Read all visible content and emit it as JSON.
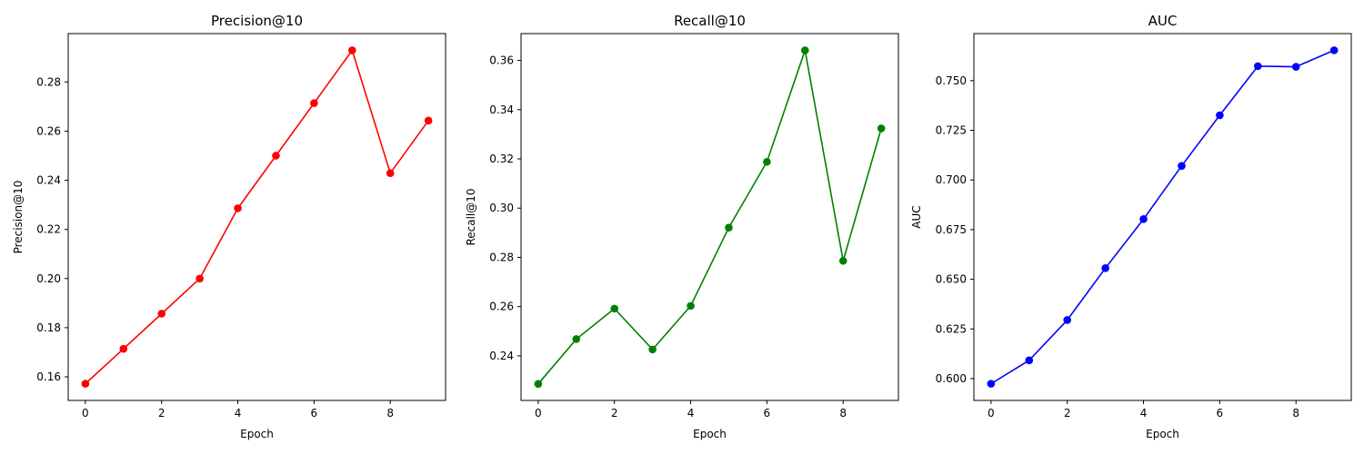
{
  "chart_data": [
    {
      "type": "line",
      "title": "Precision@10",
      "xlabel": "Epoch",
      "ylabel": "Precision@10",
      "color": "#ff0000",
      "x": [
        0,
        1,
        2,
        3,
        4,
        5,
        6,
        7,
        8,
        9
      ],
      "y": [
        0.1572,
        0.1714,
        0.1857,
        0.2,
        0.2286,
        0.25,
        0.2714,
        0.2929,
        0.2429,
        0.2643
      ],
      "xlim": [
        -0.45,
        9.45
      ],
      "ylim": [
        0.1504,
        0.2997
      ],
      "xticks": [
        0,
        2,
        4,
        6,
        8
      ],
      "xtick_labels": [
        "0",
        "2",
        "4",
        "6",
        "8"
      ],
      "yticks": [
        0.16,
        0.18,
        0.2,
        0.22,
        0.24,
        0.26,
        0.28
      ],
      "ytick_labels": [
        "0.16",
        "0.18",
        "0.20",
        "0.22",
        "0.24",
        "0.26",
        "0.28"
      ],
      "grid": false,
      "marker": "circle"
    },
    {
      "type": "line",
      "title": "Recall@10",
      "xlabel": "Epoch",
      "ylabel": "Recall@10",
      "color": "#008000",
      "x": [
        0,
        1,
        2,
        3,
        4,
        5,
        6,
        7,
        8,
        9
      ],
      "y": [
        0.2286,
        0.2468,
        0.2592,
        0.2426,
        0.2603,
        0.2921,
        0.3188,
        0.3641,
        0.2786,
        0.3324
      ],
      "xlim": [
        -0.45,
        9.45
      ],
      "ylim": [
        0.2219,
        0.3709
      ],
      "xticks": [
        0,
        2,
        4,
        6,
        8
      ],
      "xtick_labels": [
        "0",
        "2",
        "4",
        "6",
        "8"
      ],
      "yticks": [
        0.24,
        0.26,
        0.28,
        0.3,
        0.32,
        0.34,
        0.36
      ],
      "ytick_labels": [
        "0.24",
        "0.26",
        "0.28",
        "0.30",
        "0.32",
        "0.34",
        "0.36"
      ],
      "grid": false,
      "marker": "circle"
    },
    {
      "type": "line",
      "title": "AUC",
      "xlabel": "Epoch",
      "ylabel": "AUC",
      "color": "#0000ff",
      "x": [
        0,
        1,
        2,
        3,
        4,
        5,
        6,
        7,
        8,
        9
      ],
      "y": [
        0.5974,
        0.6092,
        0.6295,
        0.6556,
        0.6803,
        0.7071,
        0.7326,
        0.7573,
        0.757,
        0.7653
      ],
      "xlim": [
        -0.45,
        9.45
      ],
      "ylim": [
        0.589,
        0.7737
      ],
      "xticks": [
        0,
        2,
        4,
        6,
        8
      ],
      "xtick_labels": [
        "0",
        "2",
        "4",
        "6",
        "8"
      ],
      "yticks": [
        0.6,
        0.625,
        0.65,
        0.675,
        0.7,
        0.725,
        0.75
      ],
      "ytick_labels": [
        "0.600",
        "0.625",
        "0.650",
        "0.675",
        "0.700",
        "0.725",
        "0.750"
      ],
      "grid": false,
      "marker": "circle"
    }
  ]
}
